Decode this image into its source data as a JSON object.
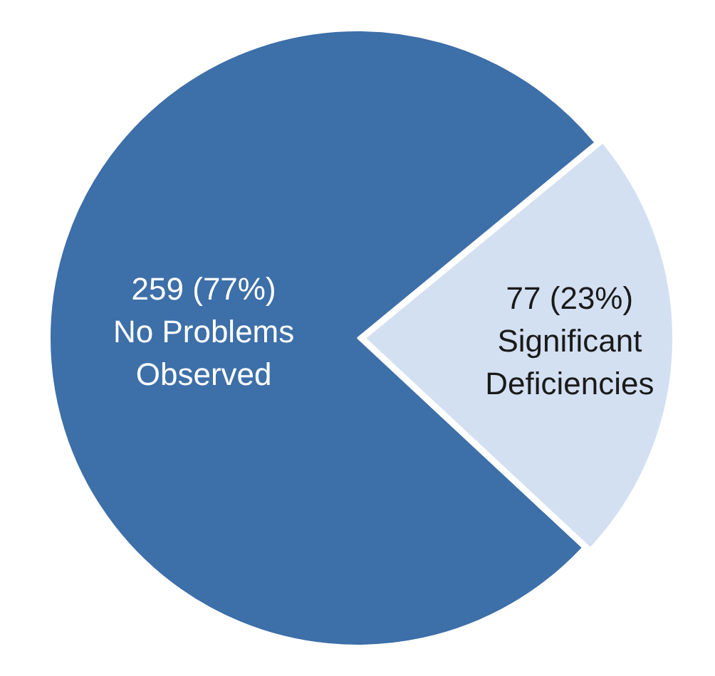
{
  "chart_data": {
    "type": "pie",
    "categories": [
      "No Problems Observed",
      "Significant Deficiencies"
    ],
    "values": [
      259,
      77
    ],
    "colors": [
      "#3d6fa8",
      "#d3e0f2"
    ],
    "value_labels": [
      "259 (77%)",
      "77 (23%)"
    ]
  }
}
